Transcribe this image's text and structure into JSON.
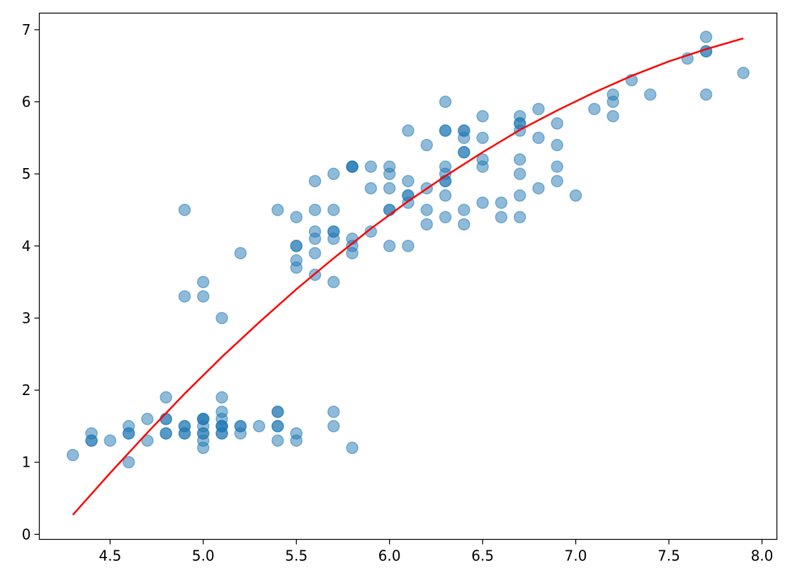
{
  "chart_data": {
    "type": "scatter",
    "title": "",
    "xlabel": "",
    "ylabel": "",
    "xlim": [
      4.12,
      8.08
    ],
    "ylim": [
      -0.07,
      7.23
    ],
    "grid": false,
    "xticks": [
      4.5,
      5.0,
      5.5,
      6.0,
      6.5,
      7.0,
      7.5,
      8.0
    ],
    "xtick_labels": [
      "4.5",
      "5.0",
      "5.5",
      "6.0",
      "6.5",
      "7.0",
      "7.5",
      "8.0"
    ],
    "yticks": [
      0,
      1,
      2,
      3,
      4,
      5,
      6,
      7
    ],
    "ytick_labels": [
      "0",
      "1",
      "2",
      "3",
      "4",
      "5",
      "6",
      "7"
    ],
    "colors": {
      "points": "#1f77b4",
      "fit": "#ff0000"
    },
    "series": [
      {
        "kind": "scatter",
        "points": [
          [
            5.1,
            1.4
          ],
          [
            4.9,
            1.4
          ],
          [
            4.7,
            1.3
          ],
          [
            4.6,
            1.5
          ],
          [
            5.0,
            1.4
          ],
          [
            5.4,
            1.7
          ],
          [
            4.6,
            1.4
          ],
          [
            5.0,
            1.5
          ],
          [
            4.4,
            1.4
          ],
          [
            4.9,
            1.5
          ],
          [
            5.4,
            1.5
          ],
          [
            4.8,
            1.6
          ],
          [
            4.8,
            1.4
          ],
          [
            4.3,
            1.1
          ],
          [
            5.8,
            1.2
          ],
          [
            5.7,
            1.5
          ],
          [
            5.4,
            1.3
          ],
          [
            5.1,
            1.4
          ],
          [
            5.7,
            1.7
          ],
          [
            5.1,
            1.5
          ],
          [
            5.4,
            1.7
          ],
          [
            5.1,
            1.5
          ],
          [
            4.6,
            1.0
          ],
          [
            5.1,
            1.7
          ],
          [
            4.8,
            1.9
          ],
          [
            5.0,
            1.6
          ],
          [
            5.0,
            1.6
          ],
          [
            5.2,
            1.5
          ],
          [
            5.2,
            1.4
          ],
          [
            4.7,
            1.6
          ],
          [
            4.8,
            1.6
          ],
          [
            5.4,
            1.5
          ],
          [
            5.2,
            1.5
          ],
          [
            5.5,
            1.4
          ],
          [
            4.9,
            1.5
          ],
          [
            5.0,
            1.2
          ],
          [
            5.5,
            1.3
          ],
          [
            4.9,
            1.4
          ],
          [
            4.4,
            1.3
          ],
          [
            5.1,
            1.5
          ],
          [
            5.0,
            1.3
          ],
          [
            4.5,
            1.3
          ],
          [
            4.4,
            1.3
          ],
          [
            5.0,
            1.6
          ],
          [
            5.1,
            1.9
          ],
          [
            4.8,
            1.4
          ],
          [
            5.1,
            1.6
          ],
          [
            4.6,
            1.4
          ],
          [
            5.3,
            1.5
          ],
          [
            5.0,
            1.4
          ],
          [
            7.0,
            4.7
          ],
          [
            6.4,
            4.5
          ],
          [
            6.9,
            4.9
          ],
          [
            5.5,
            4.0
          ],
          [
            6.5,
            4.6
          ],
          [
            5.7,
            4.5
          ],
          [
            6.3,
            4.7
          ],
          [
            4.9,
            3.3
          ],
          [
            6.6,
            4.6
          ],
          [
            5.2,
            3.9
          ],
          [
            5.0,
            3.5
          ],
          [
            5.9,
            4.2
          ],
          [
            6.0,
            4.0
          ],
          [
            6.1,
            4.7
          ],
          [
            5.6,
            3.6
          ],
          [
            6.7,
            4.4
          ],
          [
            5.6,
            4.5
          ],
          [
            5.8,
            4.1
          ],
          [
            6.2,
            4.5
          ],
          [
            5.6,
            3.9
          ],
          [
            5.9,
            4.8
          ],
          [
            6.1,
            4.0
          ],
          [
            6.3,
            4.9
          ],
          [
            6.1,
            4.7
          ],
          [
            6.4,
            4.3
          ],
          [
            6.6,
            4.4
          ],
          [
            6.8,
            4.8
          ],
          [
            6.7,
            5.0
          ],
          [
            6.0,
            4.5
          ],
          [
            5.7,
            3.5
          ],
          [
            5.5,
            3.8
          ],
          [
            5.5,
            3.7
          ],
          [
            5.8,
            3.9
          ],
          [
            6.0,
            5.1
          ],
          [
            5.4,
            4.5
          ],
          [
            6.0,
            4.5
          ],
          [
            6.7,
            4.7
          ],
          [
            6.3,
            4.4
          ],
          [
            5.6,
            4.1
          ],
          [
            5.5,
            4.0
          ],
          [
            5.5,
            4.4
          ],
          [
            6.1,
            4.6
          ],
          [
            5.8,
            4.0
          ],
          [
            5.0,
            3.3
          ],
          [
            5.6,
            4.2
          ],
          [
            5.7,
            4.2
          ],
          [
            5.7,
            4.2
          ],
          [
            6.2,
            4.3
          ],
          [
            5.1,
            3.0
          ],
          [
            5.7,
            4.1
          ],
          [
            6.3,
            6.0
          ],
          [
            5.8,
            5.1
          ],
          [
            7.1,
            5.9
          ],
          [
            6.3,
            5.6
          ],
          [
            6.5,
            5.8
          ],
          [
            7.6,
            6.6
          ],
          [
            4.9,
            4.5
          ],
          [
            7.3,
            6.3
          ],
          [
            6.7,
            5.8
          ],
          [
            7.2,
            6.1
          ],
          [
            6.5,
            5.1
          ],
          [
            6.4,
            5.3
          ],
          [
            6.8,
            5.5
          ],
          [
            5.7,
            5.0
          ],
          [
            5.8,
            5.1
          ],
          [
            6.4,
            5.3
          ],
          [
            6.5,
            5.5
          ],
          [
            7.7,
            6.7
          ],
          [
            7.7,
            6.9
          ],
          [
            6.0,
            5.0
          ],
          [
            6.9,
            5.7
          ],
          [
            5.6,
            4.9
          ],
          [
            7.7,
            6.7
          ],
          [
            6.3,
            4.9
          ],
          [
            6.7,
            5.7
          ],
          [
            7.2,
            6.0
          ],
          [
            6.2,
            4.8
          ],
          [
            6.1,
            4.9
          ],
          [
            6.4,
            5.6
          ],
          [
            7.2,
            5.8
          ],
          [
            7.4,
            6.1
          ],
          [
            7.9,
            6.4
          ],
          [
            6.4,
            5.6
          ],
          [
            6.3,
            5.1
          ],
          [
            6.1,
            5.6
          ],
          [
            7.7,
            6.1
          ],
          [
            6.3,
            5.6
          ],
          [
            6.4,
            5.5
          ],
          [
            6.0,
            4.8
          ],
          [
            6.9,
            5.4
          ],
          [
            6.7,
            5.6
          ],
          [
            6.9,
            5.1
          ],
          [
            5.8,
            5.1
          ],
          [
            6.8,
            5.9
          ],
          [
            6.7,
            5.7
          ],
          [
            6.7,
            5.2
          ],
          [
            6.3,
            5.0
          ],
          [
            6.5,
            5.2
          ],
          [
            6.2,
            5.4
          ],
          [
            5.9,
            5.1
          ]
        ]
      },
      {
        "kind": "line",
        "points": [
          [
            4.3,
            0.27
          ],
          [
            4.5,
            0.85
          ],
          [
            4.7,
            1.41
          ],
          [
            4.9,
            1.95
          ],
          [
            5.1,
            2.46
          ],
          [
            5.3,
            2.94
          ],
          [
            5.5,
            3.4
          ],
          [
            5.7,
            3.83
          ],
          [
            5.9,
            4.24
          ],
          [
            6.1,
            4.62
          ],
          [
            6.3,
            4.97
          ],
          [
            6.5,
            5.3
          ],
          [
            6.7,
            5.61
          ],
          [
            6.9,
            5.88
          ],
          [
            7.1,
            6.13
          ],
          [
            7.3,
            6.36
          ],
          [
            7.5,
            6.56
          ],
          [
            7.7,
            6.73
          ],
          [
            7.9,
            6.88
          ]
        ]
      }
    ]
  }
}
